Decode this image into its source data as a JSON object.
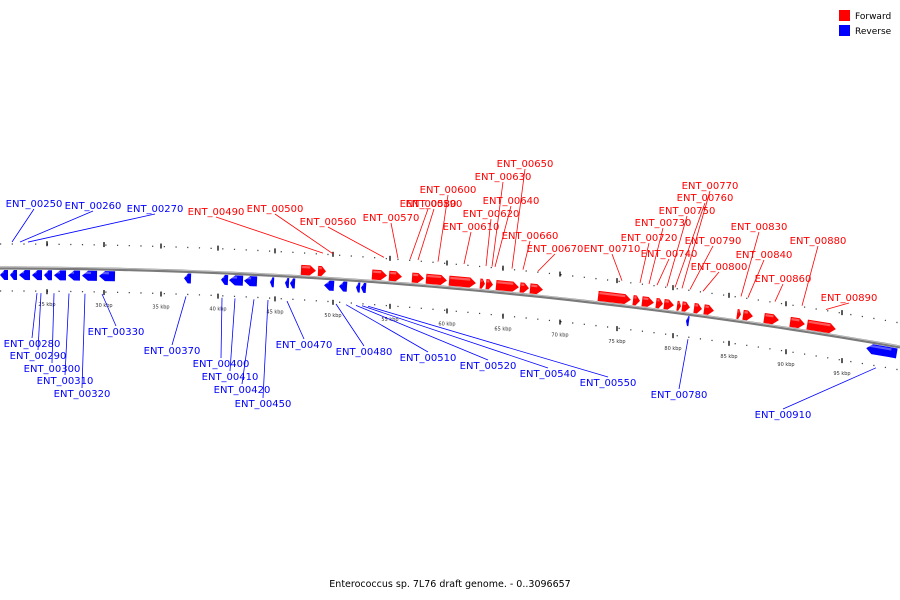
{
  "caption": "Enterococcus sp. 7L76 draft genome. - 0..3096657",
  "legend": [
    {
      "label": "Forward",
      "color": "#ff0000"
    },
    {
      "label": "Reverse",
      "color": "#0000ff"
    }
  ],
  "colors": {
    "forward": "#ff0000",
    "reverse": "#0000ff",
    "backbone": "#808080"
  },
  "scale_ticks": [
    "25 kbp",
    "30 kbp",
    "35 kbp",
    "40 kbp",
    "45 kbp",
    "50 kbp",
    "55 kbp",
    "60 kbp",
    "65 kbp",
    "70 kbp",
    "75 kbp",
    "80 kbp",
    "85 kbp",
    "90 kbp",
    "95 kbp"
  ],
  "forward_labels": [
    "ENT_00490",
    "ENT_00500",
    "ENT_00560",
    "ENT_00570",
    "ENT_00580",
    "ENT_00590",
    "ENT_00600",
    "ENT_00610",
    "ENT_00620",
    "ENT_00630",
    "ENT_00640",
    "ENT_00650",
    "ENT_00660",
    "ENT_00670",
    "ENT_00710",
    "ENT_00720",
    "ENT_00730",
    "ENT_00740",
    "ENT_00750",
    "ENT_00760",
    "ENT_00770",
    "ENT_00790",
    "ENT_00800",
    "ENT_00830",
    "ENT_00840",
    "ENT_00860",
    "ENT_00880",
    "ENT_00890"
  ],
  "reverse_labels": [
    "ENT_00250",
    "ENT_00260",
    "ENT_00270",
    "ENT_00280",
    "ENT_00290",
    "ENT_00300",
    "ENT_00310",
    "ENT_00320",
    "ENT_00330",
    "ENT_00370",
    "ENT_00400",
    "ENT_00410",
    "ENT_00420",
    "ENT_00450",
    "ENT_00470",
    "ENT_00480",
    "ENT_00510",
    "ENT_00520",
    "ENT_00540",
    "ENT_00550",
    "ENT_00780",
    "ENT_00910"
  ]
}
